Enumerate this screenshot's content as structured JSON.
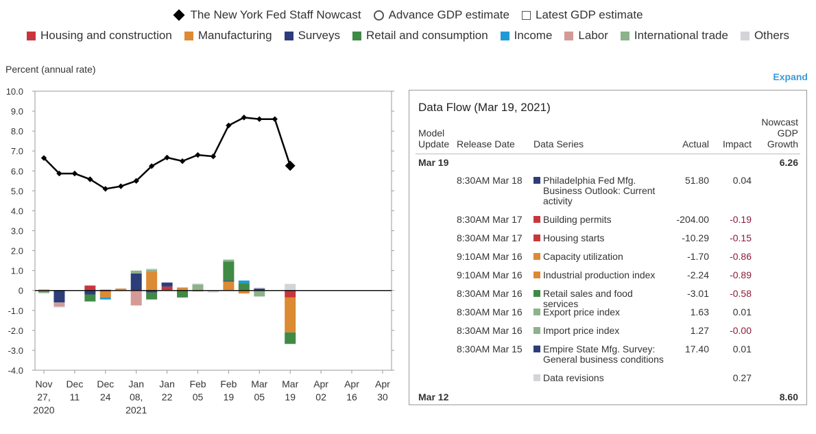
{
  "legend": {
    "top": [
      {
        "label": "The New York Fed Staff Nowcast",
        "symbol": "diamond-icon"
      },
      {
        "label": "Advance GDP estimate",
        "symbol": "circle-icon"
      },
      {
        "label": "Latest GDP estimate",
        "symbol": "square-icon"
      }
    ],
    "categories": [
      {
        "label": "Housing and construction",
        "color": "#c8363d"
      },
      {
        "label": "Manufacturing",
        "color": "#dc8a33"
      },
      {
        "label": "Surveys",
        "color": "#2c3d7a"
      },
      {
        "label": "Retail and consumption",
        "color": "#3f8a45"
      },
      {
        "label": "Income",
        "color": "#1e9bd7"
      },
      {
        "label": "Labor",
        "color": "#d59a96"
      },
      {
        "label": "International trade",
        "color": "#8cb38a"
      },
      {
        "label": "Others",
        "color": "#d3d3d8"
      }
    ]
  },
  "chart_data": {
    "type": "line+stacked-bar",
    "ylabel": "Percent (annual rate)",
    "ylim": [
      -4.0,
      10.0
    ],
    "yticks": [
      "10.0",
      "9.0",
      "8.0",
      "7.0",
      "6.0",
      "5.0",
      "4.0",
      "3.0",
      "2.0",
      "1.0",
      "0",
      "-1.0",
      "-2.0",
      "-3.0",
      "-4.0"
    ],
    "xtick_labels": [
      [
        "Nov",
        "27,",
        "2020"
      ],
      [
        "Dec",
        "11"
      ],
      [
        "Dec",
        "24"
      ],
      [
        "Jan",
        "08,",
        "2021"
      ],
      [
        "Jan",
        "22"
      ],
      [
        "Feb",
        "05"
      ],
      [
        "Feb",
        "19"
      ],
      [
        "Mar",
        "05"
      ],
      [
        "Mar",
        "19"
      ],
      [
        "Apr",
        "02"
      ],
      [
        "Apr",
        "16"
      ],
      [
        "Apr",
        "30"
      ]
    ],
    "nowcast_series": {
      "name": "The New York Fed Staff Nowcast",
      "values": [
        6.65,
        5.87,
        5.87,
        5.58,
        5.1,
        5.23,
        5.5,
        6.24,
        6.67,
        6.49,
        6.8,
        6.73,
        8.28,
        8.68,
        8.6,
        8.6,
        6.26
      ]
    },
    "bar_series_order": [
      "Housing and construction",
      "Manufacturing",
      "Surveys",
      "Retail and consumption",
      "Income",
      "Labor",
      "International trade",
      "Others"
    ],
    "bars": [
      [
        0,
        -0.05,
        0,
        -0.05,
        0,
        0,
        0.05,
        -0.05
      ],
      [
        0,
        0,
        -0.6,
        0,
        0,
        -0.2,
        0,
        -0.05
      ],
      [
        0,
        0,
        0,
        0,
        0,
        0,
        0,
        0
      ],
      [
        0.25,
        0,
        -0.2,
        -0.35,
        0,
        0,
        0,
        0
      ],
      [
        -0.05,
        -0.3,
        0,
        0,
        -0.1,
        0,
        0.05,
        0
      ],
      [
        0,
        0.1,
        0,
        0,
        0,
        0,
        0,
        0
      ],
      [
        0,
        0,
        0.85,
        0,
        0,
        -0.75,
        0.15,
        0
      ],
      [
        0,
        0.95,
        -0.1,
        -0.35,
        0,
        0,
        0.1,
        0.05
      ],
      [
        0.2,
        0,
        0.2,
        0,
        0,
        0,
        0,
        0
      ],
      [
        0,
        0.15,
        0,
        -0.35,
        0,
        0,
        0,
        0
      ],
      [
        0,
        0,
        0,
        0,
        0,
        -0.05,
        0.3,
        0.05
      ],
      [
        0,
        0,
        0,
        0,
        0,
        0,
        0,
        -0.1
      ],
      [
        0,
        0.45,
        0.05,
        0.95,
        0,
        0,
        0.1,
        0
      ],
      [
        0,
        -0.15,
        0,
        0.35,
        0.15,
        0,
        0,
        0
      ],
      [
        0,
        0,
        0.1,
        0,
        0,
        0,
        -0.3,
        0.05
      ],
      [
        0,
        0,
        0,
        0,
        0,
        0,
        0,
        0
      ],
      [
        -0.35,
        -1.75,
        0,
        -0.58,
        0,
        0,
        0.01,
        0.32
      ]
    ]
  },
  "expand_label": "Expand",
  "table": {
    "title": "Data Flow (Mar 19, 2021)",
    "headers": {
      "model": "Model Update",
      "release": "Release Date",
      "series": "Data Series",
      "actual": "Actual",
      "impact": "Impact",
      "growth": "Nowcast GDP Growth"
    },
    "groups": [
      {
        "model": "Mar 19",
        "growth": "6.26"
      },
      {
        "model": "Mar 12",
        "growth": "8.60"
      }
    ],
    "rows": [
      {
        "date": "8:30AM Mar 18",
        "series": "Philadelphia Fed Mfg. Business Outlook: Current activity",
        "color": "#2c3d7a",
        "actual": "51.80",
        "impact": "0.04"
      },
      {
        "date": "8:30AM Mar 17",
        "series": "Building permits",
        "color": "#c8363d",
        "actual": "-204.00",
        "impact": "-0.19"
      },
      {
        "date": "8:30AM Mar 17",
        "series": "Housing starts",
        "color": "#c8363d",
        "actual": "-10.29",
        "impact": "-0.15"
      },
      {
        "date": "9:10AM Mar 16",
        "series": "Capacity utilization",
        "color": "#dc8a33",
        "actual": "-1.70",
        "impact": "-0.86"
      },
      {
        "date": "9:10AM Mar 16",
        "series": "Industrial production index",
        "color": "#dc8a33",
        "actual": "-2.24",
        "impact": "-0.89"
      },
      {
        "date": "8:30AM Mar 16",
        "series": "Retail sales and food services",
        "color": "#3f8a45",
        "actual": "-3.01",
        "impact": "-0.58"
      },
      {
        "date": "8:30AM Mar 16",
        "series": "Export price index",
        "color": "#8cb38a",
        "actual": "1.63",
        "impact": "0.01"
      },
      {
        "date": "8:30AM Mar 16",
        "series": "Import price index",
        "color": "#8cb38a",
        "actual": "1.27",
        "impact": "-0.00"
      },
      {
        "date": "8:30AM Mar 15",
        "series": "Empire State Mfg. Survey: General business conditions",
        "color": "#2c3d7a",
        "actual": "17.40",
        "impact": "0.01"
      },
      {
        "date": "",
        "series": "Data revisions",
        "color": "#d3d3d8",
        "actual": "",
        "impact": "0.27"
      }
    ]
  }
}
